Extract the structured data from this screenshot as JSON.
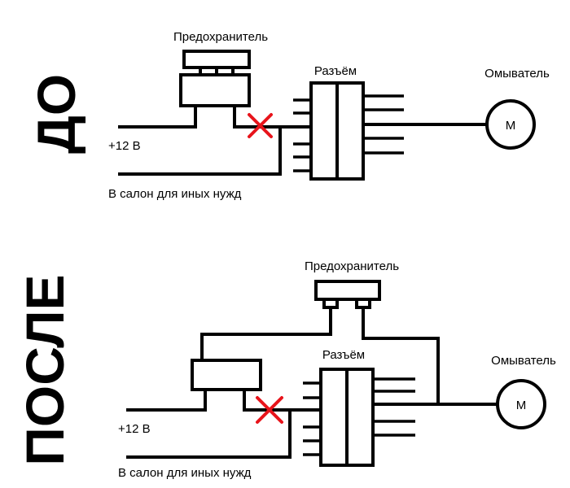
{
  "before": {
    "side_label": "ДО",
    "fuse_label": "Предохранитель",
    "connector_label": "Разъём",
    "washer_label": "Омыватель",
    "motor_symbol": "M",
    "power_label": "+12 В",
    "cabin_label": "В салон для иных нужд"
  },
  "after": {
    "side_label": "ПОСЛЕ",
    "fuse_label": "Предохранитель",
    "connector_label": "Разъём",
    "washer_label": "Омыватель",
    "motor_symbol": "M",
    "power_label": "+12 В",
    "cabin_label": "В салон для иных нужд"
  },
  "colors": {
    "line": "#000000",
    "cut_mark": "#e8141b"
  },
  "icons": {
    "cut_mark": "cross-icon",
    "motor": "motor-icon"
  }
}
